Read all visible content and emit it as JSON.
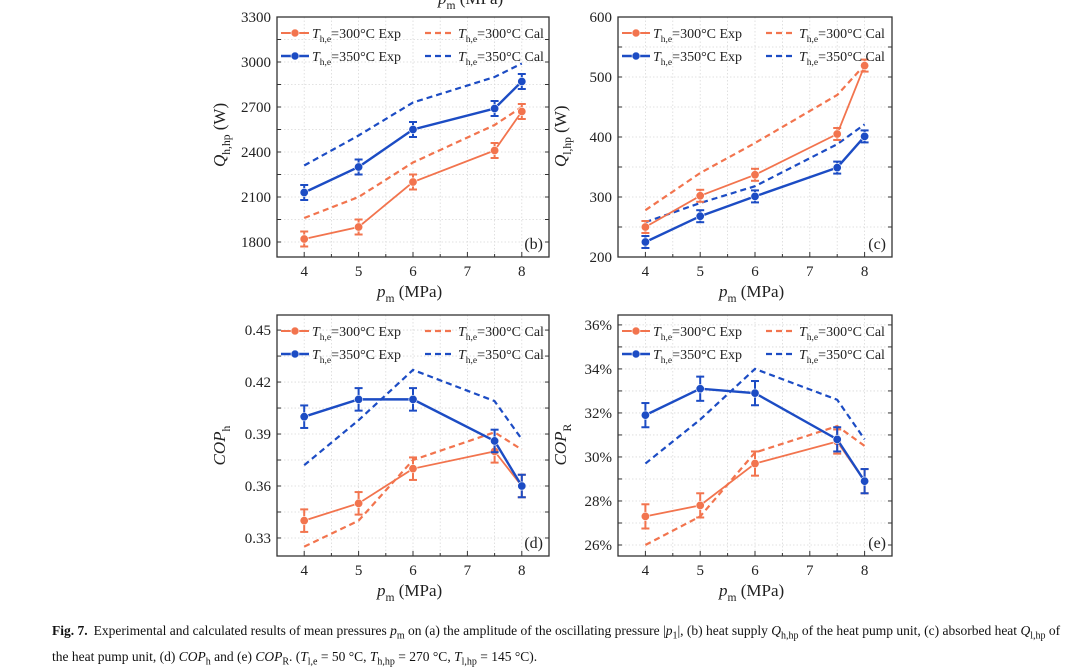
{
  "colors": {
    "t300": "#f2744e",
    "t350": "#1c4cc4",
    "grid": "#d9d9d9",
    "axis": "#333333"
  },
  "top_cut_label": {
    "main": "p",
    "sub": "m",
    "rest": " (MPa)"
  },
  "legend": [
    {
      "key": "t300",
      "type": "exp",
      "T": "T",
      "sub": "h,e",
      "text": "=300°C Exp"
    },
    {
      "key": "t300",
      "type": "cal",
      "T": "T",
      "sub": "h,e",
      "text": "=300°C Cal"
    },
    {
      "key": "t350",
      "type": "exp",
      "T": "T",
      "sub": "h,e",
      "text": "=350°C Exp"
    },
    {
      "key": "t350",
      "type": "cal",
      "T": "T",
      "sub": "h,e",
      "text": "=350°C Cal"
    }
  ],
  "chart_data": [
    {
      "id": "b",
      "type": "line",
      "panel_label": "(b)",
      "xlabel": {
        "main": "p",
        "sub": "m",
        "rest": " (MPa)"
      },
      "ylabel": {
        "main": "Q",
        "sub": "h,hp",
        "rest": " (W)"
      },
      "xlim": [
        3.5,
        8.5
      ],
      "xticks": [
        4,
        5,
        6,
        7,
        8
      ],
      "ylim": [
        1700,
        3300
      ],
      "yticks": [
        1800,
        2100,
        2400,
        2700,
        3000,
        3300
      ],
      "ytick_labels": [
        "1800",
        "2100",
        "2400",
        "2700",
        "3000",
        "3300"
      ],
      "x": [
        4,
        5,
        6,
        7.5,
        8
      ],
      "error": 50,
      "series": [
        {
          "name": "Th,e=300°C Exp",
          "key": "t300",
          "type": "exp",
          "values": [
            1820,
            1900,
            2200,
            2410,
            2670
          ]
        },
        {
          "name": "Th,e=300°C Cal",
          "key": "t300",
          "type": "cal",
          "values": [
            1960,
            2100,
            2330,
            2580,
            2700
          ]
        },
        {
          "name": "Th,e=350°C Exp",
          "key": "t350",
          "type": "exp",
          "values": [
            2130,
            2300,
            2550,
            2690,
            2870
          ]
        },
        {
          "name": "Th,e=350°C Cal",
          "key": "t350",
          "type": "cal",
          "values": [
            2310,
            2510,
            2730,
            2900,
            2990
          ]
        }
      ]
    },
    {
      "id": "c",
      "type": "line",
      "panel_label": "(c)",
      "xlabel": {
        "main": "p",
        "sub": "m",
        "rest": " (MPa)"
      },
      "ylabel": {
        "main": "Q",
        "sub": "l,hp",
        "rest": " (W)"
      },
      "xlim": [
        3.5,
        8.5
      ],
      "xticks": [
        4,
        5,
        6,
        7,
        8
      ],
      "ylim": [
        200,
        600
      ],
      "yticks": [
        200,
        300,
        400,
        500,
        600
      ],
      "ytick_labels": [
        "200",
        "300",
        "400",
        "500",
        "600"
      ],
      "x": [
        4,
        5,
        6,
        7.5,
        8
      ],
      "error": 10,
      "series": [
        {
          "name": "Th,e=300°C Exp",
          "key": "t300",
          "type": "exp",
          "values": [
            250,
            302,
            337,
            405,
            519
          ]
        },
        {
          "name": "Th,e=300°C Cal",
          "key": "t300",
          "type": "cal",
          "values": [
            278,
            340,
            390,
            470,
            520
          ]
        },
        {
          "name": "Th,e=350°C Exp",
          "key": "t350",
          "type": "exp",
          "values": [
            225,
            268,
            301,
            349,
            401
          ]
        },
        {
          "name": "Th,e=350°C Cal",
          "key": "t350",
          "type": "cal",
          "values": [
            258,
            290,
            318,
            388,
            421
          ]
        }
      ]
    },
    {
      "id": "d",
      "type": "line",
      "panel_label": "(d)",
      "xlabel": {
        "main": "p",
        "sub": "m",
        "rest": " (MPa)"
      },
      "ylabel": {
        "main": "COP",
        "sub": "h",
        "rest": ""
      },
      "xlim": [
        3.5,
        8.5
      ],
      "xticks": [
        4,
        5,
        6,
        7,
        8
      ],
      "ylim": [
        0.3196,
        0.4587
      ],
      "yticks": [
        0.33,
        0.36,
        0.39,
        0.42,
        0.45
      ],
      "ytick_labels": [
        "0.33",
        "0.36",
        "0.39",
        "0.42",
        "0.45"
      ],
      "x": [
        4,
        5,
        6,
        7.5,
        8
      ],
      "error": 0.0065,
      "series": [
        {
          "name": "Th,e=300°C Exp",
          "key": "t300",
          "type": "exp",
          "values": [
            0.34,
            0.35,
            0.37,
            0.38,
            0.36
          ]
        },
        {
          "name": "Th,e=300°C Cal",
          "key": "t300",
          "type": "cal",
          "values": [
            0.325,
            0.34,
            0.375,
            0.391,
            0.381
          ]
        },
        {
          "name": "Th,e=350°C Exp",
          "key": "t350",
          "type": "exp",
          "values": [
            0.4,
            0.41,
            0.41,
            0.386,
            0.36
          ]
        },
        {
          "name": "Th,e=350°C Cal",
          "key": "t350",
          "type": "cal",
          "values": [
            0.372,
            0.398,
            0.427,
            0.409,
            0.387
          ]
        }
      ]
    },
    {
      "id": "e",
      "type": "line",
      "panel_label": "(e)",
      "xlabel": {
        "main": "p",
        "sub": "m",
        "rest": " (MPa)"
      },
      "ylabel": {
        "main": "COP",
        "sub": "R",
        "rest": ""
      },
      "xlim": [
        3.5,
        8.5
      ],
      "xticks": [
        4,
        5,
        6,
        7,
        8
      ],
      "ylim": [
        25.5,
        36.45
      ],
      "yticks": [
        26,
        28,
        30,
        32,
        34,
        36
      ],
      "ytick_labels": [
        "26%",
        "28%",
        "30%",
        "32%",
        "34%",
        "36%"
      ],
      "x": [
        4,
        5,
        6,
        7.5,
        8
      ],
      "error": 0.55,
      "series": [
        {
          "name": "Th,e=300°C Exp",
          "key": "t300",
          "type": "exp",
          "values": [
            27.3,
            27.8,
            29.7,
            30.7,
            28.9
          ]
        },
        {
          "name": "Th,e=300°C Cal",
          "key": "t300",
          "type": "cal",
          "values": [
            26.0,
            27.3,
            30.2,
            31.4,
            30.5
          ]
        },
        {
          "name": "Th,e=350°C Exp",
          "key": "t350",
          "type": "exp",
          "values": [
            31.9,
            33.1,
            32.9,
            30.8,
            28.9
          ]
        },
        {
          "name": "Th,e=350°C Cal",
          "key": "t350",
          "type": "cal",
          "values": [
            29.7,
            31.7,
            34.0,
            32.6,
            30.8
          ]
        }
      ]
    }
  ],
  "caption": {
    "label": "Fig. 7.",
    "segments": [
      {
        "t": "Experimental and calculated results of mean pressures "
      },
      {
        "t": "p",
        "i": true
      },
      {
        "t": "m",
        "sub": true
      },
      {
        "t": " on (a) the amplitude of the oscillating pressure |"
      },
      {
        "t": "p",
        "i": true
      },
      {
        "t": "1",
        "sub": true
      },
      {
        "t": "|, (b) heat supply "
      },
      {
        "t": "Q",
        "i": true
      },
      {
        "t": "h,hp",
        "sub": true
      },
      {
        "t": " of the heat pump unit, (c) absorbed heat "
      },
      {
        "t": "Q",
        "i": true
      },
      {
        "t": "l,hp",
        "sub": true
      },
      {
        "t": " of the heat pump unit, (d) "
      },
      {
        "t": "COP",
        "i": true
      },
      {
        "t": "h",
        "sub": true
      },
      {
        "t": " and (e) "
      },
      {
        "t": "COP",
        "i": true
      },
      {
        "t": "R",
        "sub": true
      },
      {
        "t": ". ("
      },
      {
        "t": "T",
        "i": true
      },
      {
        "t": "l,e",
        "sub": true
      },
      {
        "t": " = 50 °C, "
      },
      {
        "t": "T",
        "i": true
      },
      {
        "t": "h,hp",
        "sub": true
      },
      {
        "t": " = 270 °C, "
      },
      {
        "t": "T",
        "i": true
      },
      {
        "t": "l,hp",
        "sub": true
      },
      {
        "t": " = 145 °C)."
      }
    ]
  }
}
